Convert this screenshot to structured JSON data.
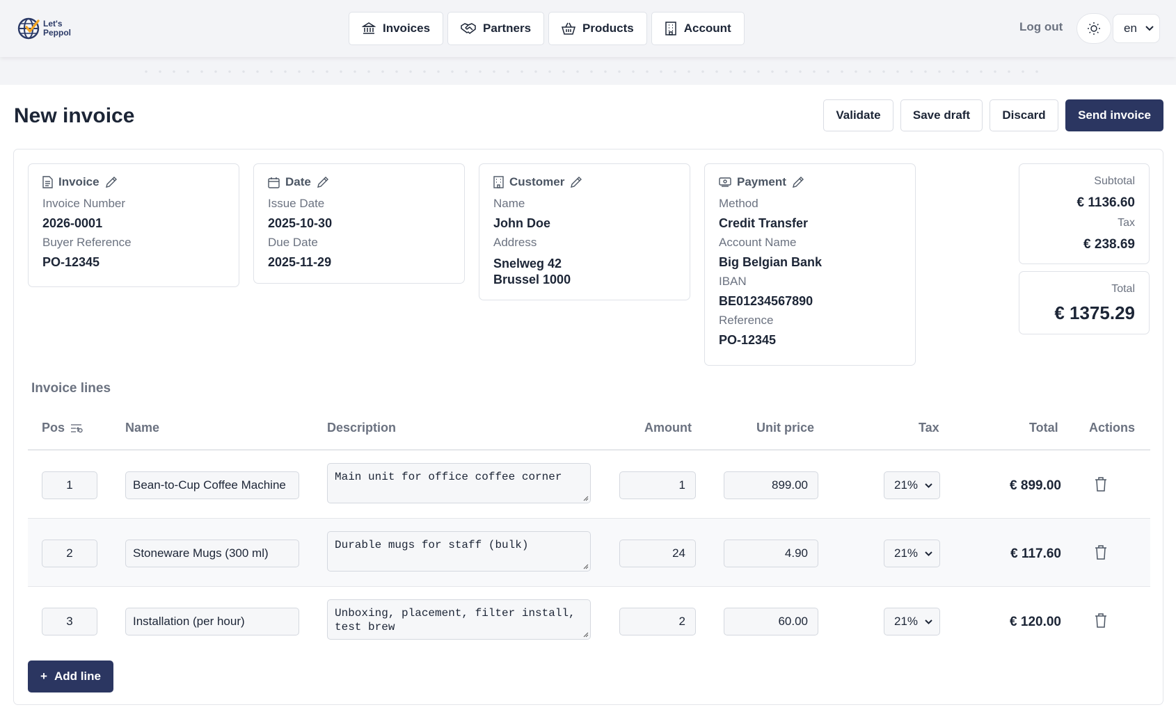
{
  "brand": {
    "line1": "Let's",
    "line2": "Peppol"
  },
  "nav": [
    {
      "label": "Invoices",
      "icon": "bank-icon"
    },
    {
      "label": "Partners",
      "icon": "handshake-icon"
    },
    {
      "label": "Products",
      "icon": "basket-icon"
    },
    {
      "label": "Account",
      "icon": "building-icon"
    }
  ],
  "header": {
    "logout": "Log out",
    "language": "en"
  },
  "page": {
    "title": "New invoice",
    "actions": {
      "validate": "Validate",
      "save_draft": "Save draft",
      "discard": "Discard",
      "send": "Send invoice"
    }
  },
  "invoice": {
    "title": "Invoice",
    "number_label": "Invoice Number",
    "number": "2026-0001",
    "buyer_ref_label": "Buyer Reference",
    "buyer_ref": "PO-12345"
  },
  "date": {
    "title": "Date",
    "issue_label": "Issue Date",
    "issue": "2025-10-30",
    "due_label": "Due Date",
    "due": "2025-11-29"
  },
  "customer": {
    "title": "Customer",
    "name_label": "Name",
    "name": "John Doe",
    "address_label": "Address",
    "address1": "Snelweg 42",
    "address2": "Brussel 1000"
  },
  "payment": {
    "title": "Payment",
    "method_label": "Method",
    "method": "Credit Transfer",
    "account_label": "Account Name",
    "account": "Big Belgian Bank",
    "iban_label": "IBAN",
    "iban": "BE01234567890",
    "reference_label": "Reference",
    "reference": "PO-12345"
  },
  "summary": {
    "subtotal_label": "Subtotal",
    "subtotal": "€ 1136.60",
    "tax_label": "Tax",
    "tax": "€ 238.69",
    "total_label": "Total",
    "total": "€ 1375.29"
  },
  "lines": {
    "title": "Invoice lines",
    "headers": {
      "pos": "Pos",
      "name": "Name",
      "description": "Description",
      "amount": "Amount",
      "unit_price": "Unit price",
      "tax": "Tax",
      "total": "Total",
      "actions": "Actions"
    },
    "rows": [
      {
        "pos": "1",
        "name": "Bean-to-Cup Coffee Machine",
        "description": "Main unit for office coffee corner",
        "amount": "1",
        "unit_price": "899.00",
        "tax": "21%",
        "total": "€ 899.00"
      },
      {
        "pos": "2",
        "name": "Stoneware Mugs (300 ml)",
        "description": "Durable mugs for staff (bulk)",
        "amount": "24",
        "unit_price": "4.90",
        "tax": "21%",
        "total": "€ 117.60"
      },
      {
        "pos": "3",
        "name": "Installation (per hour)",
        "description": "Unboxing, placement, filter install,\ntest brew",
        "amount": "2",
        "unit_price": "60.00",
        "tax": "21%",
        "total": "€ 120.00"
      }
    ],
    "add_line": "Add line"
  },
  "colors": {
    "primary": "#2b3661",
    "muted": "#6b7280",
    "text": "#1c2536"
  }
}
